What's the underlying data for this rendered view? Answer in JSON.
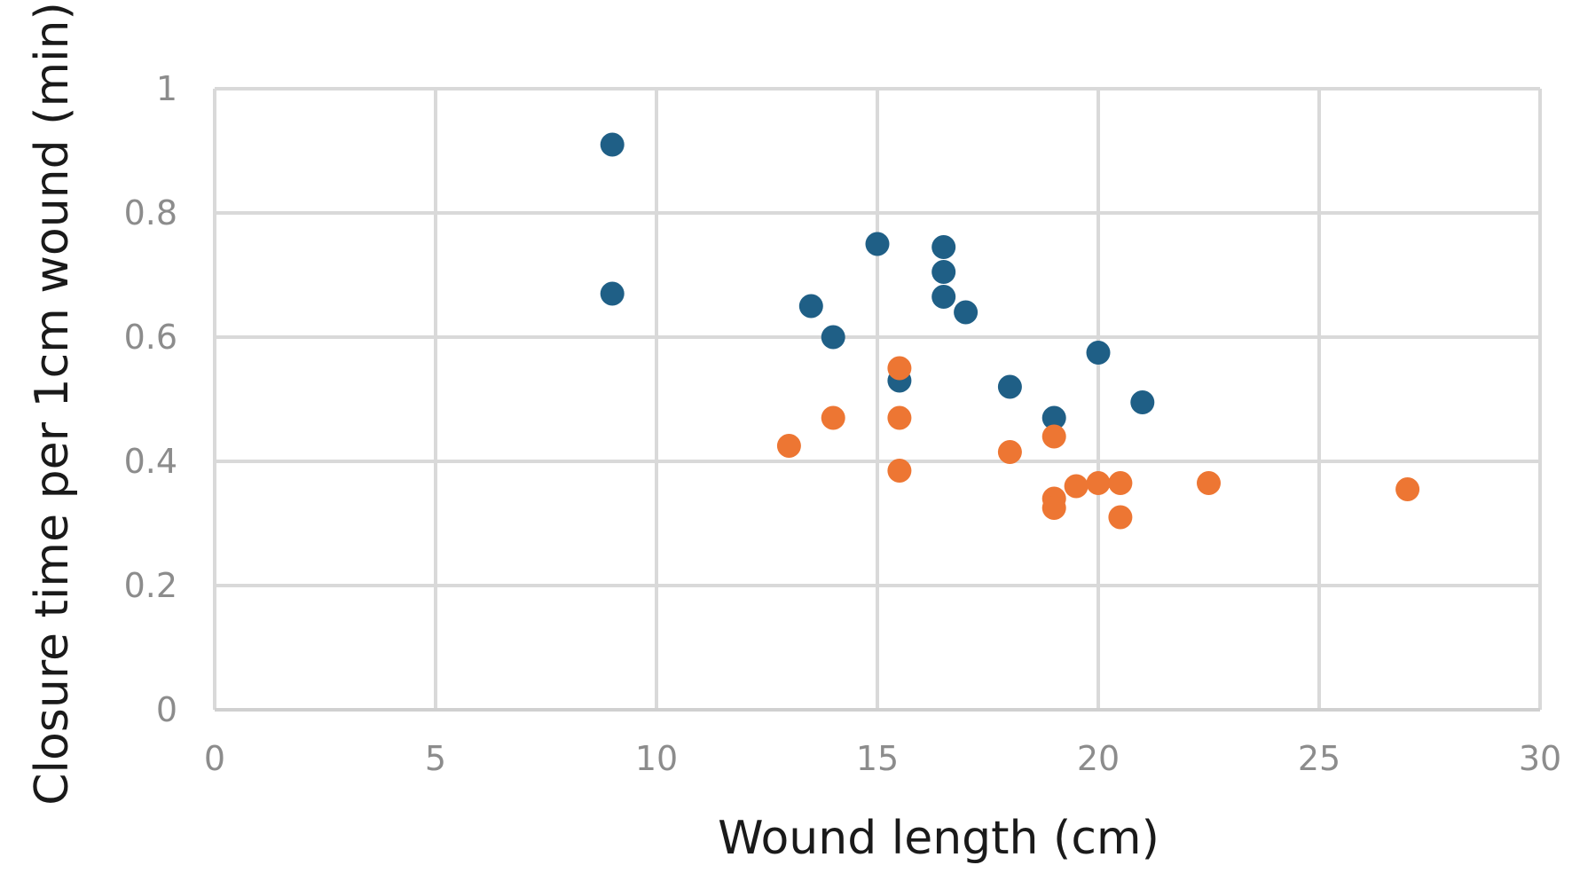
{
  "chart_data": {
    "type": "scatter",
    "title": "",
    "xlabel": "Wound length (cm)",
    "ylabel": "Closure time per 1cm wound (min)",
    "xlim": [
      0,
      30
    ],
    "ylim": [
      0,
      1
    ],
    "xticks": [
      0,
      5,
      10,
      15,
      20,
      25,
      30
    ],
    "yticks": [
      0,
      0.2,
      0.4,
      0.6,
      0.8,
      1
    ],
    "ytick_labels": [
      "0",
      "0.2",
      "0.4",
      "0.6",
      "0.8",
      "1"
    ],
    "grid": true,
    "legend": "none",
    "series": [
      {
        "color": "#1f5f86",
        "points": [
          {
            "x": 9,
            "y": 0.91
          },
          {
            "x": 9,
            "y": 0.67
          },
          {
            "x": 13.5,
            "y": 0.65
          },
          {
            "x": 14,
            "y": 0.6
          },
          {
            "x": 15,
            "y": 0.75
          },
          {
            "x": 15.5,
            "y": 0.53
          },
          {
            "x": 16.5,
            "y": 0.745
          },
          {
            "x": 16.5,
            "y": 0.705
          },
          {
            "x": 16.5,
            "y": 0.665
          },
          {
            "x": 17,
            "y": 0.64
          },
          {
            "x": 18,
            "y": 0.52
          },
          {
            "x": 19,
            "y": 0.47
          },
          {
            "x": 20,
            "y": 0.575
          },
          {
            "x": 21,
            "y": 0.495
          }
        ]
      },
      {
        "color": "#ed7633",
        "points": [
          {
            "x": 13,
            "y": 0.425
          },
          {
            "x": 14,
            "y": 0.47
          },
          {
            "x": 15.5,
            "y": 0.55
          },
          {
            "x": 15.5,
            "y": 0.47
          },
          {
            "x": 15.5,
            "y": 0.385
          },
          {
            "x": 18,
            "y": 0.415
          },
          {
            "x": 19,
            "y": 0.44
          },
          {
            "x": 19,
            "y": 0.34
          },
          {
            "x": 19,
            "y": 0.325
          },
          {
            "x": 19.5,
            "y": 0.36
          },
          {
            "x": 20,
            "y": 0.365
          },
          {
            "x": 20.5,
            "y": 0.365
          },
          {
            "x": 20.5,
            "y": 0.31
          },
          {
            "x": 22.5,
            "y": 0.365
          },
          {
            "x": 27,
            "y": 0.355
          }
        ]
      }
    ]
  }
}
